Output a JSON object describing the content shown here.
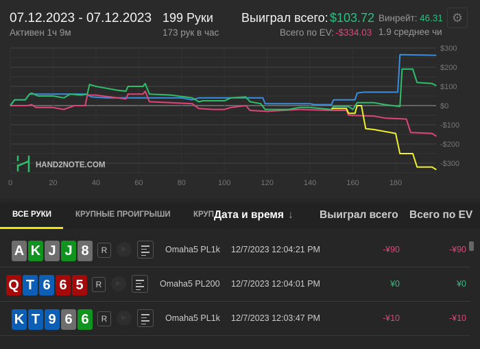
{
  "header": {
    "date_range": "07.12.2023 - 07.12.2023",
    "active": "Активен 1ч 9м",
    "hands": "199 Руки",
    "hands_per_hour": "173 рук в час",
    "won_label": "Выиграл всего:",
    "won_value": "$103.72",
    "winrate_label": "Винрейт:",
    "winrate_value": "46.31",
    "ev_label": "Всего по EV:",
    "ev_value": "-$334.03",
    "avg": "1.9 среднее чи",
    "settings_icon": "gear-icon"
  },
  "chart_data": {
    "type": "line",
    "xlim": [
      0,
      199
    ],
    "ylim": [
      -350,
      320
    ],
    "x_ticks": [
      "0",
      "20",
      "40",
      "60",
      "80",
      "100",
      "120",
      "140",
      "160",
      "180"
    ],
    "y_ticks": [
      "$300",
      "$200",
      "$100",
      "$0",
      "-$100",
      "-$200",
      "-$300"
    ],
    "watermark": "HAND2NOTE.COM",
    "grid": true,
    "series": [
      {
        "color": "#3a8ee0",
        "points": [
          [
            0,
            0
          ],
          [
            2,
            30
          ],
          [
            7,
            30
          ],
          [
            9,
            60
          ],
          [
            35,
            60
          ],
          [
            38,
            45
          ],
          [
            45,
            40
          ],
          [
            80,
            40
          ],
          [
            85,
            30
          ],
          [
            88,
            40
          ],
          [
            118,
            40
          ],
          [
            119,
            10
          ],
          [
            140,
            10
          ],
          [
            142,
            5
          ],
          [
            150,
            5
          ],
          [
            151,
            30
          ],
          [
            161,
            30
          ],
          [
            162,
            65
          ],
          [
            165,
            70
          ],
          [
            181,
            70
          ],
          [
            182,
            265
          ],
          [
            199,
            262
          ]
        ]
      },
      {
        "color": "#e0457a",
        "points": [
          [
            0,
            0
          ],
          [
            8,
            0
          ],
          [
            10,
            5
          ],
          [
            12,
            -10
          ],
          [
            20,
            -10
          ],
          [
            25,
            -20
          ],
          [
            30,
            0
          ],
          [
            35,
            0
          ],
          [
            36,
            55
          ],
          [
            40,
            55
          ],
          [
            50,
            40
          ],
          [
            54,
            35
          ],
          [
            55,
            60
          ],
          [
            62,
            60
          ],
          [
            63,
            75
          ],
          [
            65,
            20
          ],
          [
            75,
            15
          ],
          [
            85,
            10
          ],
          [
            88,
            -15
          ],
          [
            95,
            -20
          ],
          [
            100,
            -20
          ],
          [
            103,
            -10
          ],
          [
            110,
            0
          ],
          [
            112,
            -25
          ],
          [
            120,
            -30
          ],
          [
            135,
            -20
          ],
          [
            150,
            -25
          ],
          [
            157,
            -25
          ],
          [
            158,
            -50
          ],
          [
            170,
            -55
          ],
          [
            175,
            -65
          ],
          [
            185,
            -70
          ],
          [
            187,
            -140
          ],
          [
            197,
            -145
          ],
          [
            199,
            -160
          ]
        ]
      },
      {
        "color": "#2fbf6a",
        "points": [
          [
            0,
            0
          ],
          [
            2,
            30
          ],
          [
            7,
            30
          ],
          [
            9,
            60
          ],
          [
            10,
            65
          ],
          [
            13,
            50
          ],
          [
            20,
            50
          ],
          [
            25,
            40
          ],
          [
            28,
            60
          ],
          [
            33,
            55
          ],
          [
            36,
            60
          ],
          [
            37,
            110
          ],
          [
            40,
            100
          ],
          [
            45,
            90
          ],
          [
            50,
            80
          ],
          [
            54,
            75
          ],
          [
            55,
            100
          ],
          [
            62,
            100
          ],
          [
            63,
            115
          ],
          [
            65,
            60
          ],
          [
            75,
            55
          ],
          [
            85,
            40
          ],
          [
            88,
            20
          ],
          [
            90,
            25
          ],
          [
            100,
            25
          ],
          [
            103,
            40
          ],
          [
            110,
            45
          ],
          [
            112,
            20
          ],
          [
            117,
            10
          ],
          [
            119,
            -20
          ],
          [
            130,
            -20
          ],
          [
            135,
            -10
          ],
          [
            140,
            -10
          ],
          [
            150,
            -20
          ],
          [
            151,
            -5
          ],
          [
            158,
            -5
          ],
          [
            160,
            -20
          ],
          [
            162,
            15
          ],
          [
            170,
            15
          ],
          [
            175,
            5
          ],
          [
            182,
            -5
          ],
          [
            183,
            190
          ],
          [
            188,
            190
          ],
          [
            190,
            120
          ],
          [
            197,
            115
          ],
          [
            199,
            104
          ]
        ]
      },
      {
        "color": "#f2f22a",
        "points": [
          [
            150,
            -15
          ],
          [
            157,
            -15
          ],
          [
            158,
            -40
          ],
          [
            161,
            -40
          ],
          [
            162,
            0
          ],
          [
            164,
            0
          ],
          [
            166,
            -120
          ],
          [
            170,
            -125
          ],
          [
            175,
            -135
          ],
          [
            180,
            -145
          ],
          [
            182,
            -250
          ],
          [
            188,
            -250
          ],
          [
            190,
            -320
          ],
          [
            197,
            -320
          ],
          [
            199,
            -334
          ]
        ]
      }
    ]
  },
  "tabs": [
    {
      "label": "ВСЕ РУКИ"
    },
    {
      "label": "КРУПНЫЕ ПРОИГРЫШИ"
    },
    {
      "label": "КРУП"
    }
  ],
  "columns": {
    "datetime": "Дата и время",
    "sort_icon": "↓",
    "won": "Выиграл всего",
    "ev": "Всего по EV"
  },
  "rows": [
    {
      "cards": [
        [
          "A",
          "s"
        ],
        [
          "K",
          "c"
        ],
        [
          "J",
          "s"
        ],
        [
          "J",
          "c"
        ],
        [
          "8",
          "s"
        ]
      ],
      "r": "R",
      "game": "Omaha5 PL1k",
      "datetime": "12/7/2023 12:04:21 PM",
      "won": "-¥90",
      "ev": "-¥90",
      "won_color": "#e0457a"
    },
    {
      "cards": [
        [
          "Q",
          "h"
        ],
        [
          "T",
          "d"
        ],
        [
          "6",
          "d"
        ],
        [
          "6",
          "h"
        ],
        [
          "5",
          "h"
        ]
      ],
      "r": "R",
      "game": "Omaha5 PL200",
      "datetime": "12/7/2023 12:04:01 PM",
      "won": "¥0",
      "ev": "¥0",
      "won_color": "#27c281"
    },
    {
      "cards": [
        [
          "K",
          "d"
        ],
        [
          "T",
          "d"
        ],
        [
          "9",
          "d"
        ],
        [
          "6",
          "s"
        ],
        [
          "6",
          "c"
        ]
      ],
      "r": "R",
      "game": "Omaha5 PL1k",
      "datetime": "12/7/2023 12:03:47 PM",
      "won": "-¥10",
      "ev": "-¥10",
      "won_color": "#e0457a"
    }
  ]
}
